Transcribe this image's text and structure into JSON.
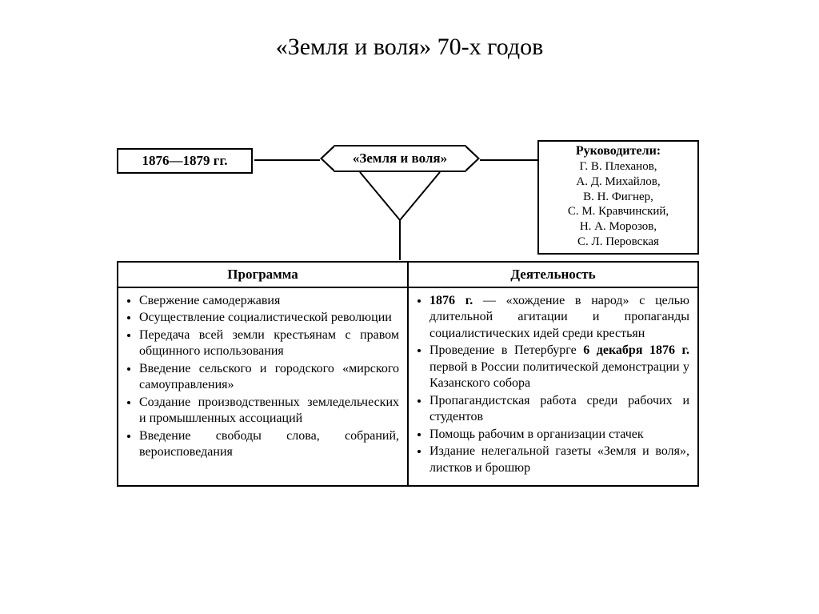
{
  "title": "«Земля и воля» 70-х годов",
  "years": "1876—1879 гг.",
  "center": "«Земля и воля»",
  "leaders": {
    "header": "Руководители:",
    "names": [
      "Г. В. Плеханов,",
      "А. Д. Михайлов,",
      "В. Н. Фигнер,",
      "С. М. Кравчинский,",
      "Н. А. Морозов,",
      "С. Л. Перовская"
    ]
  },
  "columns": {
    "left_header": "Программа",
    "right_header": "Деятельность"
  },
  "program": [
    "Свержение самодержавия",
    "Осуществление социалистической революции",
    "Передача всей земли крестьянам с правом общинного использования",
    "Введение сельского и городского «мирского самоуправления»",
    "Создание производственных земледельческих и промышленных ассоциаций",
    "Введение свободы слова, собраний, вероисповедания"
  ],
  "activity": [
    {
      "bold": "1876 г.",
      "rest": " — «хождение в народ» с целью длительной агитации и пропаганды социалистических идей среди крестьян"
    },
    {
      "bold": "",
      "rest": "Проведение в Петербурге <b>6 декабря 1876 г.</b> первой в России политической демонстрации у Казанского собора"
    },
    {
      "bold": "",
      "rest": "Пропагандистская работа среди рабочих и студентов"
    },
    {
      "bold": "",
      "rest": "Помощь рабочим в организации стачек"
    },
    {
      "bold": "",
      "rest": "Издание нелегальной газеты «Земля и воля», листков и брошюр"
    }
  ],
  "colors": {
    "line": "#000000",
    "bg": "#ffffff"
  }
}
